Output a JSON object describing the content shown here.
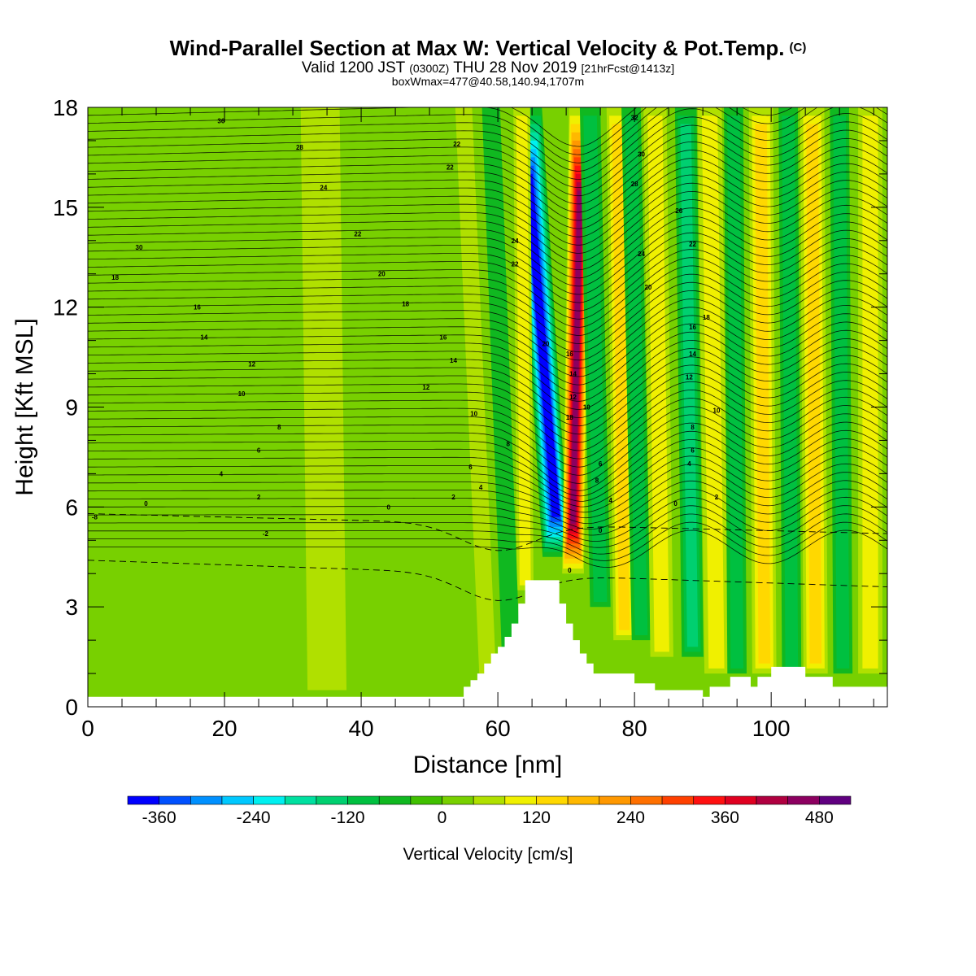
{
  "header": {
    "title": "Wind-Parallel Section at Max W: Vertical Velocity & Pot.Temp.",
    "copyright": "(C)",
    "valid_prefix": "Valid 1200 JST",
    "valid_zulu": "(0300Z)",
    "valid_date": "THU 28 Nov 2019",
    "forecast": "[21hrFcst@1413z]",
    "box_info": "boxWmax=477@40.58,140.94,1707m"
  },
  "colors": {
    "bands": [
      "#0000ff",
      "#0050ff",
      "#0090ff",
      "#00c8ff",
      "#00f0f0",
      "#00e0a0",
      "#00d070",
      "#00c040",
      "#10b820",
      "#40c000",
      "#78d000",
      "#b0e000",
      "#f0f000",
      "#ffd800",
      "#ffb800",
      "#ff9800",
      "#ff7000",
      "#ff4000",
      "#ff1010",
      "#e00020",
      "#b00040",
      "#8c0060",
      "#600080"
    ],
    "terrain": "#ffffff"
  },
  "chart_data": {
    "type": "heatmap",
    "xlabel": "Distance [nm]",
    "ylabel": "Height [Kft MSL]",
    "xlim": [
      0,
      117
    ],
    "ylim": [
      0,
      18
    ],
    "xticks": [
      0,
      20,
      40,
      60,
      80,
      100
    ],
    "yticks": [
      0,
      3,
      6,
      9,
      12,
      15,
      18
    ],
    "colorbar": {
      "label": "Vertical Velocity [cm/s]",
      "ticks": [
        -360,
        -240,
        -120,
        0,
        120,
        240,
        360,
        480
      ],
      "min": -400,
      "max": 520,
      "step": 40
    },
    "w_features": [
      {
        "x_bottom": 68.5,
        "x_top": 64.5,
        "z_bottom": 4.5,
        "width": 2.0,
        "w": -400
      },
      {
        "x_bottom": 71.0,
        "x_top": 72.0,
        "z_bottom": 4.0,
        "width": 1.6,
        "w": 477
      },
      {
        "x_bottom": 75.0,
        "x_top": 73.5,
        "z_bottom": 3.0,
        "width": 1.5,
        "w": -90
      },
      {
        "x_bottom": 78.5,
        "x_top": 77.5,
        "z_bottom": 2.0,
        "width": 1.6,
        "w": 130
      },
      {
        "x_bottom": 81.0,
        "x_top": 79.5,
        "z_bottom": 2.0,
        "width": 1.4,
        "w": -110
      },
      {
        "x_bottom": 84.0,
        "x_top": 83.0,
        "z_bottom": 1.5,
        "width": 1.7,
        "w": 110
      },
      {
        "x_bottom": 88.5,
        "x_top": 87.5,
        "z_bottom": 1.5,
        "width": 1.6,
        "w": -120
      },
      {
        "x_bottom": 92.0,
        "x_top": 91.0,
        "z_bottom": 1.0,
        "width": 1.8,
        "w": 110
      },
      {
        "x_bottom": 95.0,
        "x_top": 94.5,
        "z_bottom": 1.0,
        "width": 1.4,
        "w": -90
      },
      {
        "x_bottom": 99.0,
        "x_top": 98.5,
        "z_bottom": 1.0,
        "width": 1.8,
        "w": 120
      },
      {
        "x_bottom": 103.0,
        "x_top": 102.5,
        "z_bottom": 1.0,
        "width": 1.4,
        "w": -90
      },
      {
        "x_bottom": 106.5,
        "x_top": 106.0,
        "z_bottom": 1.0,
        "width": 1.8,
        "w": 120
      },
      {
        "x_bottom": 110.5,
        "x_top": 110.0,
        "z_bottom": 1.0,
        "width": 1.4,
        "w": -80
      },
      {
        "x_bottom": 114.5,
        "x_top": 114.5,
        "z_bottom": 1.0,
        "width": 1.8,
        "w": 110
      },
      {
        "x_bottom": 64.0,
        "x_top": 63.5,
        "z_bottom": 3.5,
        "width": 1.2,
        "w": 110
      },
      {
        "x_bottom": 62.0,
        "x_top": 59.0,
        "z_bottom": 1.0,
        "width": 1.3,
        "w": -40
      },
      {
        "x_bottom": 58.5,
        "x_top": 55.0,
        "z_bottom": 1.0,
        "width": 1.2,
        "w": 50
      },
      {
        "x_bottom": 49.0,
        "x_top": 48.0,
        "z_bottom": 0.5,
        "width": 1.5,
        "w": 30
      },
      {
        "x_bottom": 35.0,
        "x_top": 34.0,
        "z_bottom": 0.5,
        "width": 3.0,
        "w": 40
      }
    ],
    "terrain": [
      [
        0,
        0.3
      ],
      [
        55,
        0.3
      ],
      [
        55,
        0.6
      ],
      [
        56,
        0.6
      ],
      [
        56,
        0.8
      ],
      [
        57,
        0.8
      ],
      [
        57,
        1.0
      ],
      [
        58,
        1.0
      ],
      [
        58,
        1.3
      ],
      [
        59,
        1.3
      ],
      [
        59,
        1.6
      ],
      [
        60,
        1.6
      ],
      [
        60,
        1.8
      ],
      [
        61,
        1.8
      ],
      [
        61,
        2.1
      ],
      [
        62,
        2.1
      ],
      [
        62,
        2.5
      ],
      [
        63,
        2.5
      ],
      [
        63,
        3.1
      ],
      [
        64,
        3.1
      ],
      [
        64,
        3.8
      ],
      [
        69,
        3.8
      ],
      [
        69,
        3.1
      ],
      [
        70,
        3.1
      ],
      [
        70,
        2.5
      ],
      [
        71,
        2.5
      ],
      [
        71,
        2.0
      ],
      [
        72,
        2.0
      ],
      [
        72,
        1.6
      ],
      [
        73,
        1.6
      ],
      [
        73,
        1.3
      ],
      [
        74,
        1.3
      ],
      [
        74,
        1.0
      ],
      [
        80,
        1.0
      ],
      [
        80,
        0.7
      ],
      [
        83,
        0.7
      ],
      [
        83,
        0.5
      ],
      [
        90,
        0.5
      ],
      [
        90,
        0.3
      ],
      [
        91,
        0.3
      ],
      [
        91,
        0.6
      ],
      [
        94,
        0.6
      ],
      [
        94,
        0.9
      ],
      [
        97,
        0.9
      ],
      [
        97,
        0.6
      ],
      [
        98,
        0.6
      ],
      [
        98,
        0.9
      ],
      [
        100,
        0.9
      ],
      [
        100,
        1.2
      ],
      [
        105,
        1.2
      ],
      [
        105,
        0.9
      ],
      [
        109,
        0.9
      ],
      [
        109,
        0.6
      ],
      [
        117,
        0.6
      ]
    ],
    "theta_labels": [
      {
        "x": 19.5,
        "z": 17.6,
        "text": "36"
      },
      {
        "x": 31.0,
        "z": 16.8,
        "text": "28"
      },
      {
        "x": 34.5,
        "z": 15.6,
        "text": "24"
      },
      {
        "x": 39.5,
        "z": 14.2,
        "text": "22"
      },
      {
        "x": 43.0,
        "z": 13.0,
        "text": "20"
      },
      {
        "x": 46.5,
        "z": 12.1,
        "text": "18"
      },
      {
        "x": 7.5,
        "z": 13.8,
        "text": "30"
      },
      {
        "x": 4.0,
        "z": 12.9,
        "text": "18"
      },
      {
        "x": 16.0,
        "z": 12.0,
        "text": "16"
      },
      {
        "x": 17.0,
        "z": 11.1,
        "text": "14"
      },
      {
        "x": 24.0,
        "z": 10.3,
        "text": "12"
      },
      {
        "x": 22.5,
        "z": 9.4,
        "text": "10"
      },
      {
        "x": 28.0,
        "z": 8.4,
        "text": "8"
      },
      {
        "x": 25.0,
        "z": 7.7,
        "text": "6"
      },
      {
        "x": 19.5,
        "z": 7.0,
        "text": "4"
      },
      {
        "x": 25.0,
        "z": 6.3,
        "text": "2"
      },
      {
        "x": 8.5,
        "z": 6.1,
        "text": "0"
      },
      {
        "x": 1.0,
        "z": 5.7,
        "text": "-8"
      },
      {
        "x": 26.0,
        "z": 5.2,
        "text": "-2"
      },
      {
        "x": 44.0,
        "z": 6.0,
        "text": "0"
      },
      {
        "x": 53.5,
        "z": 6.3,
        "text": "2"
      },
      {
        "x": 57.5,
        "z": 6.6,
        "text": "4"
      },
      {
        "x": 56.0,
        "z": 7.2,
        "text": "6"
      },
      {
        "x": 61.5,
        "z": 7.9,
        "text": "8"
      },
      {
        "x": 56.5,
        "z": 8.8,
        "text": "10"
      },
      {
        "x": 49.5,
        "z": 9.6,
        "text": "12"
      },
      {
        "x": 53.5,
        "z": 10.4,
        "text": "14"
      },
      {
        "x": 52.0,
        "z": 11.1,
        "text": "16"
      },
      {
        "x": 53.0,
        "z": 16.2,
        "text": "22"
      },
      {
        "x": 54.0,
        "z": 16.9,
        "text": "22"
      },
      {
        "x": 62.5,
        "z": 14.0,
        "text": "24"
      },
      {
        "x": 62.5,
        "z": 13.3,
        "text": "22"
      },
      {
        "x": 67.0,
        "z": 10.9,
        "text": "20"
      },
      {
        "x": 70.5,
        "z": 10.6,
        "text": "16"
      },
      {
        "x": 71.0,
        "z": 10.0,
        "text": "14"
      },
      {
        "x": 71.0,
        "z": 9.3,
        "text": "12"
      },
      {
        "x": 73.0,
        "z": 9.0,
        "text": "10"
      },
      {
        "x": 70.5,
        "z": 8.7,
        "text": "18"
      },
      {
        "x": 75.0,
        "z": 7.3,
        "text": "6"
      },
      {
        "x": 74.5,
        "z": 6.8,
        "text": "8"
      },
      {
        "x": 76.5,
        "z": 6.2,
        "text": "4"
      },
      {
        "x": 75.0,
        "z": 5.3,
        "text": "0"
      },
      {
        "x": 70.5,
        "z": 4.1,
        "text": "0"
      },
      {
        "x": 80.0,
        "z": 17.7,
        "text": "32"
      },
      {
        "x": 81.0,
        "z": 16.6,
        "text": "30"
      },
      {
        "x": 80.0,
        "z": 15.7,
        "text": "28"
      },
      {
        "x": 86.5,
        "z": 14.9,
        "text": "26"
      },
      {
        "x": 88.5,
        "z": 13.9,
        "text": "22"
      },
      {
        "x": 81.0,
        "z": 13.6,
        "text": "24"
      },
      {
        "x": 82.0,
        "z": 12.6,
        "text": "20"
      },
      {
        "x": 90.5,
        "z": 11.7,
        "text": "18"
      },
      {
        "x": 88.5,
        "z": 11.4,
        "text": "16"
      },
      {
        "x": 88.5,
        "z": 10.6,
        "text": "14"
      },
      {
        "x": 88.0,
        "z": 9.9,
        "text": "12"
      },
      {
        "x": 92.0,
        "z": 8.9,
        "text": "10"
      },
      {
        "x": 88.5,
        "z": 8.4,
        "text": "8"
      },
      {
        "x": 88.5,
        "z": 7.7,
        "text": "6"
      },
      {
        "x": 88.0,
        "z": 7.3,
        "text": "4"
      },
      {
        "x": 92.0,
        "z": 6.3,
        "text": "2"
      },
      {
        "x": 86.0,
        "z": 6.1,
        "text": "0"
      }
    ]
  }
}
